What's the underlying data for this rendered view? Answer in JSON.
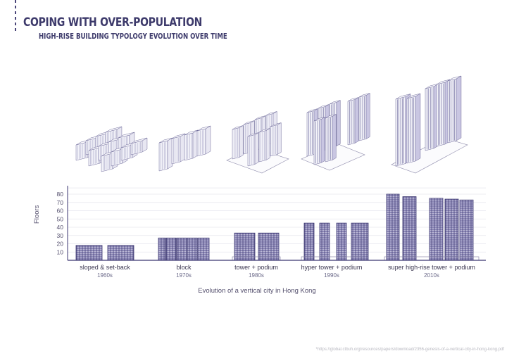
{
  "header": {
    "title": "COPING WITH OVER-POPULATION",
    "subtitle": "HIGH-RISE BUILDING TYPOLOGY EVOLUTION OVER TIME"
  },
  "colors": {
    "accent": "#3d3a6b",
    "bar_fill": "#8e8ab8",
    "bar_line": "#3b3670",
    "grid": "#e6e6ee",
    "axis": "#3b3670"
  },
  "chart_data": {
    "type": "bar",
    "title": "Evolution of a vertical city in Hong Kong",
    "xlabel": "Evolution of a vertical city in Hong Kong",
    "ylabel": "Floors",
    "ylim": [
      0,
      85
    ],
    "yticks": [
      10,
      20,
      30,
      40,
      50,
      60,
      70,
      80
    ],
    "grid": true,
    "groups": [
      {
        "label": "sloped & set-back",
        "decade": "1960s",
        "values": [
          18,
          18
        ],
        "podium": false
      },
      {
        "label": "block",
        "decade": "1970s",
        "values": [
          27,
          27,
          27,
          27,
          27,
          27
        ],
        "podium": false
      },
      {
        "label": "tower + podium",
        "decade": "1980s",
        "values": [
          33,
          33
        ],
        "podium": true
      },
      {
        "label": "hyper tower + podium",
        "decade": "1990s",
        "values": [
          45,
          45,
          45,
          45
        ],
        "podium": true
      },
      {
        "label": "super high-rise tower + podium",
        "decade": "2010s",
        "values": [
          80,
          77,
          75,
          74,
          73
        ],
        "podium": true
      }
    ]
  },
  "illustrations": [
    {
      "name": "sloped-set-back-buildings"
    },
    {
      "name": "block-buildings"
    },
    {
      "name": "tower-podium-buildings"
    },
    {
      "name": "hyper-tower-podium-buildings"
    },
    {
      "name": "super-high-rise-buildings"
    }
  ],
  "footnote": "*https://global.ctbuh.org/resources/papers/download/2356-genesis-of-a-vertical-city-in-hong-kong.pdf"
}
